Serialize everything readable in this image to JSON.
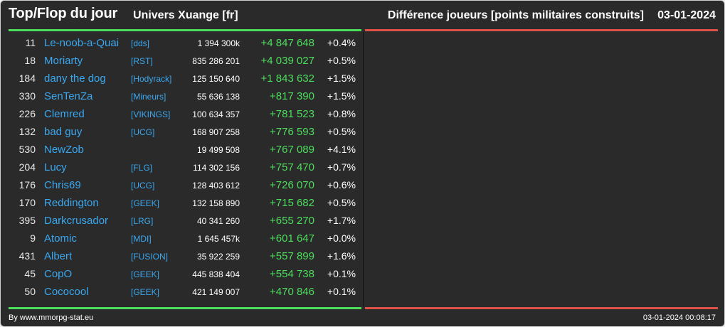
{
  "header": {
    "title": "Top/Flop du jour",
    "univers": "Univers Xuange [fr]",
    "metric": "Différence joueurs [points militaires construits]",
    "date": "03-01-2024"
  },
  "colors": {
    "accent_up": "#4cdd5c",
    "accent_down": "#e05248",
    "link": "#3aa8f0"
  },
  "top_rows": [
    {
      "rank": "11",
      "name": "Le-noob-a-Quai",
      "ally": "[dds]",
      "points": "1 394 300k",
      "diff": "+4 847 648",
      "pct": "+0.4%"
    },
    {
      "rank": "18",
      "name": "Moriarty",
      "ally": "[RST]",
      "points": "835 286 201",
      "diff": "+4 039 027",
      "pct": "+0.5%"
    },
    {
      "rank": "184",
      "name": "dany the dog",
      "ally": "[Hodyrack]",
      "points": "125 150 640",
      "diff": "+1 843 632",
      "pct": "+1.5%"
    },
    {
      "rank": "330",
      "name": "SenTenZa",
      "ally": "[Mineurs]",
      "points": "55 636 138",
      "diff": "+817 390",
      "pct": "+1.5%"
    },
    {
      "rank": "226",
      "name": "Clemred",
      "ally": "[VIKINGS]",
      "points": "100 634 357",
      "diff": "+781 523",
      "pct": "+0.8%"
    },
    {
      "rank": "132",
      "name": "bad guy",
      "ally": "[UCG]",
      "points": "168 907 258",
      "diff": "+776 593",
      "pct": "+0.5%"
    },
    {
      "rank": "530",
      "name": "NewZob",
      "ally": "",
      "points": "19 499 508",
      "diff": "+767 089",
      "pct": "+4.1%"
    },
    {
      "rank": "204",
      "name": "Lucy",
      "ally": "[FLG]",
      "points": "114 302 156",
      "diff": "+757 470",
      "pct": "+0.7%"
    },
    {
      "rank": "176",
      "name": "Chris69",
      "ally": "[UCG]",
      "points": "128 403 612",
      "diff": "+726 070",
      "pct": "+0.6%"
    },
    {
      "rank": "170",
      "name": "Reddington",
      "ally": "[GEEK]",
      "points": "132 158 890",
      "diff": "+715 682",
      "pct": "+0.5%"
    },
    {
      "rank": "395",
      "name": "Darkcrusador",
      "ally": "[LRG]",
      "points": "40 341 260",
      "diff": "+655 270",
      "pct": "+1.7%"
    },
    {
      "rank": "9",
      "name": "Atomic",
      "ally": "[MDI]",
      "points": "1 645 457k",
      "diff": "+601 647",
      "pct": "+0.0%"
    },
    {
      "rank": "431",
      "name": "Albert",
      "ally": "[FUSION]",
      "points": "35 922 259",
      "diff": "+557 899",
      "pct": "+1.6%"
    },
    {
      "rank": "45",
      "name": "CopO",
      "ally": "[GEEK]",
      "points": "445 838 404",
      "diff": "+554 738",
      "pct": "+0.1%"
    },
    {
      "rank": "50",
      "name": "Cococool",
      "ally": "[GEEK]",
      "points": "421 149 007",
      "diff": "+470 846",
      "pct": "+0.1%"
    }
  ],
  "footer": {
    "source": "By www.mmorpg-stat.eu",
    "timestamp": "03-01-2024 00:08:17"
  }
}
